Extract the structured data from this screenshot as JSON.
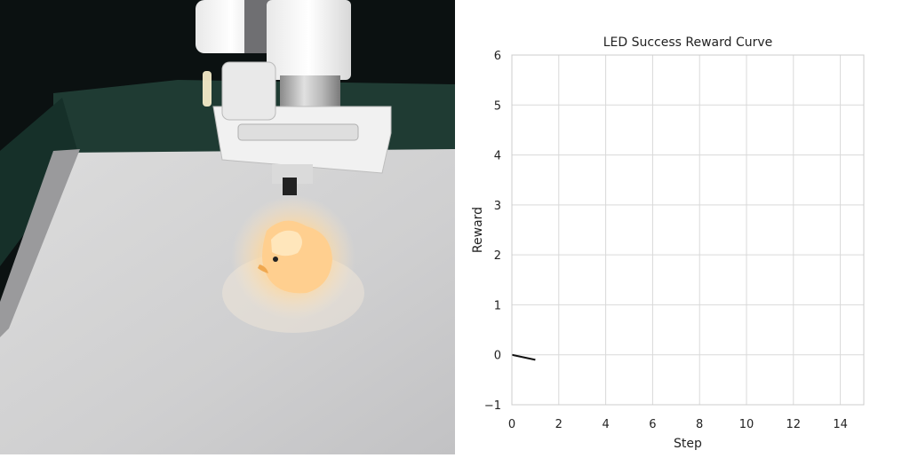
{
  "photo": {
    "subject": "robot-arm-with-gripper-above-glowing-rubber-duck"
  },
  "chart_data": {
    "type": "line",
    "title": "LED Success Reward Curve",
    "xlabel": "Step",
    "ylabel": "Reward",
    "xlim": [
      0,
      15
    ],
    "ylim": [
      -1,
      6
    ],
    "xticks": [
      0,
      2,
      4,
      6,
      8,
      10,
      12,
      14
    ],
    "yticks": [
      -1,
      0,
      1,
      2,
      3,
      4,
      5,
      6
    ],
    "grid": true,
    "series": [
      {
        "x": [
          0,
          1
        ],
        "y": [
          0,
          -0.1
        ],
        "color": "#111111"
      }
    ]
  }
}
